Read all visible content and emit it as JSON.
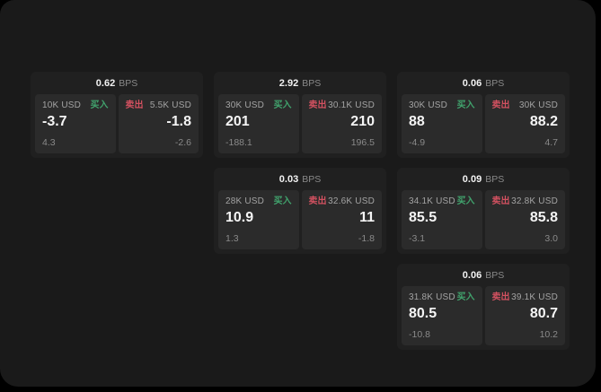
{
  "labels": {
    "bps": "BPS",
    "buy": "买入",
    "sell": "卖出"
  },
  "colors": {
    "background": "#000000",
    "window_bg": "#1a1a1a",
    "card_bg": "#202020",
    "panel_bg": "#2b2b2b",
    "buy_green": "#41a36d",
    "sell_red": "#d25160"
  },
  "cards": [
    {
      "col": 0,
      "row": 0,
      "spread": "0.62",
      "buy": {
        "size": "10K USD",
        "price": "-3.7",
        "delta": "4.3"
      },
      "sell": {
        "size": "5.5K USD",
        "price": "-1.8",
        "delta": "-2.6"
      }
    },
    {
      "col": 1,
      "row": 0,
      "spread": "2.92",
      "buy": {
        "size": "30K USD",
        "price": "201",
        "delta": "-188.1"
      },
      "sell": {
        "size": "30.1K USD",
        "price": "210",
        "delta": "196.5"
      }
    },
    {
      "col": 2,
      "row": 0,
      "spread": "0.06",
      "buy": {
        "size": "30K USD",
        "price": "88",
        "delta": "-4.9"
      },
      "sell": {
        "size": "30K USD",
        "price": "88.2",
        "delta": "4.7"
      }
    },
    {
      "col": 1,
      "row": 1,
      "spread": "0.03",
      "buy": {
        "size": "28K USD",
        "price": "10.9",
        "delta": "1.3"
      },
      "sell": {
        "size": "32.6K USD",
        "price": "11",
        "delta": "-1.8"
      }
    },
    {
      "col": 2,
      "row": 1,
      "spread": "0.09",
      "buy": {
        "size": "34.1K USD",
        "price": "85.5",
        "delta": "-3.1"
      },
      "sell": {
        "size": "32.8K USD",
        "price": "85.8",
        "delta": "3.0"
      }
    },
    {
      "col": 2,
      "row": 2,
      "spread": "0.06",
      "buy": {
        "size": "31.8K USD",
        "price": "80.5",
        "delta": "-10.8"
      },
      "sell": {
        "size": "39.1K USD",
        "price": "80.7",
        "delta": "10.2"
      }
    }
  ]
}
